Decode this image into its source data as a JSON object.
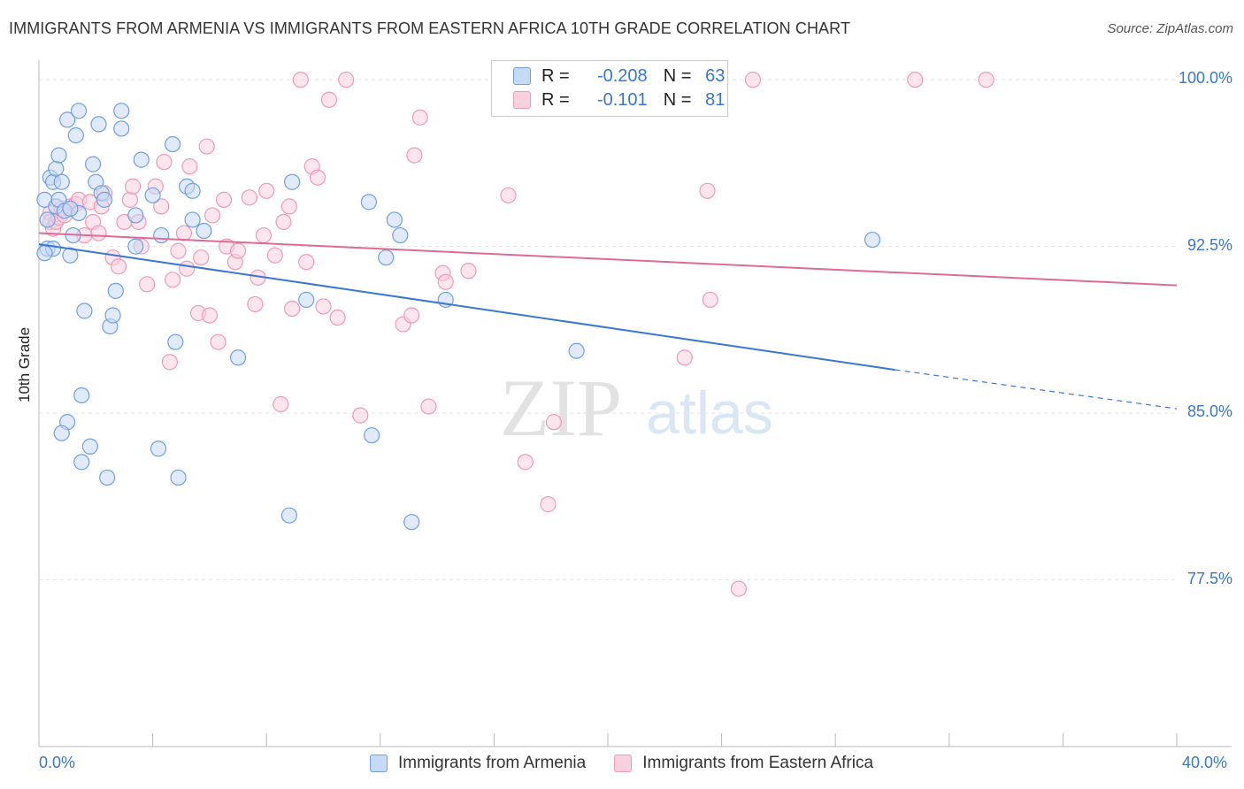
{
  "title": "IMMIGRANTS FROM ARMENIA VS IMMIGRANTS FROM EASTERN AFRICA 10TH GRADE CORRELATION CHART",
  "source": "Source: ZipAtlas.com",
  "watermark": {
    "zip": "ZIP",
    "atlas": "atlas"
  },
  "colors": {
    "blue": "#3a77d4",
    "blue_fill": "#c6d9f5",
    "blue_stroke": "#6fa0e0",
    "pink": "#e06a93",
    "pink_fill": "#f9d0dd",
    "pink_stroke": "#ef9ab8",
    "tick_text": "#3a77c9",
    "grid": "#e4e4e4"
  },
  "legend": {
    "r_label": "R =",
    "n_label": "N =",
    "rows": [
      {
        "r": "-0.208",
        "n": "63"
      },
      {
        "r": "-0.101",
        "n": "81"
      }
    ]
  },
  "chart_data": {
    "type": "scatter",
    "title": "IMMIGRANTS FROM ARMENIA VS IMMIGRANTS FROM EASTERN AFRICA 10TH GRADE CORRELATION CHART",
    "xlabel": "",
    "ylabel": "10th Grade",
    "xlim": [
      0,
      40
    ],
    "ylim": [
      70.0,
      101.2
    ],
    "x_tick_labels": [
      "0.0%",
      "40.0%"
    ],
    "y_ticks": [
      77.5,
      85.0,
      92.5,
      100.0
    ],
    "y_tick_labels": [
      "77.5%",
      "85.0%",
      "92.5%",
      "100.0%"
    ],
    "grid": true,
    "series": [
      {
        "name": "Immigrants from Armenia",
        "color": "blue",
        "r": -0.208,
        "n": 63,
        "trend": {
          "x": [
            0,
            30.1
          ],
          "y": [
            92.6,
            86.95
          ],
          "dashed_to": [
            40,
            85.2
          ]
        },
        "points": [
          [
            0.2,
            94.6
          ],
          [
            0.3,
            93.7
          ],
          [
            0.3,
            92.4
          ],
          [
            0.4,
            95.6
          ],
          [
            0.5,
            95.4
          ],
          [
            0.5,
            92.4
          ],
          [
            0.6,
            96.0
          ],
          [
            0.6,
            94.3
          ],
          [
            0.7,
            96.6
          ],
          [
            0.7,
            94.6
          ],
          [
            0.8,
            95.4
          ],
          [
            0.9,
            94.1
          ],
          [
            1.0,
            98.2
          ],
          [
            1.1,
            92.1
          ],
          [
            1.2,
            93.0
          ],
          [
            1.3,
            97.5
          ],
          [
            1.4,
            98.6
          ],
          [
            1.4,
            94.0
          ],
          [
            1.6,
            89.6
          ],
          [
            1.5,
            85.8
          ],
          [
            1.0,
            84.6
          ],
          [
            0.8,
            84.1
          ],
          [
            1.5,
            82.8
          ],
          [
            1.8,
            83.5
          ],
          [
            1.9,
            96.2
          ],
          [
            2.0,
            95.4
          ],
          [
            2.1,
            98.0
          ],
          [
            2.2,
            94.9
          ],
          [
            2.3,
            94.6
          ],
          [
            2.4,
            82.1
          ],
          [
            2.5,
            88.9
          ],
          [
            2.6,
            89.4
          ],
          [
            2.7,
            90.5
          ],
          [
            2.9,
            98.6
          ],
          [
            2.9,
            97.8
          ],
          [
            3.4,
            93.9
          ],
          [
            3.4,
            92.5
          ],
          [
            3.6,
            96.4
          ],
          [
            4.0,
            94.8
          ],
          [
            4.2,
            83.4
          ],
          [
            4.3,
            93.0
          ],
          [
            4.7,
            97.1
          ],
          [
            4.8,
            88.2
          ],
          [
            4.9,
            82.1
          ],
          [
            5.2,
            95.2
          ],
          [
            5.4,
            95.0
          ],
          [
            5.4,
            93.7
          ],
          [
            5.8,
            93.2
          ],
          [
            7.0,
            87.5
          ],
          [
            8.8,
            80.4
          ],
          [
            8.9,
            95.4
          ],
          [
            9.4,
            90.1
          ],
          [
            11.6,
            94.5
          ],
          [
            11.7,
            84.0
          ],
          [
            12.2,
            92.0
          ],
          [
            12.5,
            93.7
          ],
          [
            12.7,
            93.0
          ],
          [
            13.1,
            80.1
          ],
          [
            14.3,
            90.1
          ],
          [
            18.9,
            87.8
          ],
          [
            29.3,
            92.8
          ],
          [
            0.2,
            92.2
          ],
          [
            1.1,
            94.2
          ]
        ]
      },
      {
        "name": "Immigrants from Eastern Africa",
        "color": "pink",
        "r": -0.101,
        "n": 81,
        "trend": {
          "x": [
            0,
            40
          ],
          "y": [
            93.1,
            90.75
          ]
        },
        "points": [
          [
            0.4,
            94.0
          ],
          [
            0.4,
            93.6
          ],
          [
            0.5,
            93.3
          ],
          [
            0.6,
            93.6
          ],
          [
            0.7,
            93.8
          ],
          [
            0.8,
            94.2
          ],
          [
            0.9,
            93.9
          ],
          [
            1.1,
            94.3
          ],
          [
            1.3,
            94.4
          ],
          [
            1.4,
            94.6
          ],
          [
            1.6,
            93.0
          ],
          [
            1.8,
            94.5
          ],
          [
            1.9,
            93.6
          ],
          [
            2.1,
            93.1
          ],
          [
            2.2,
            94.3
          ],
          [
            2.3,
            94.9
          ],
          [
            2.6,
            92.0
          ],
          [
            2.8,
            91.6
          ],
          [
            3.0,
            93.6
          ],
          [
            3.2,
            94.6
          ],
          [
            3.3,
            95.2
          ],
          [
            3.5,
            93.6
          ],
          [
            3.6,
            92.5
          ],
          [
            3.8,
            90.8
          ],
          [
            4.1,
            95.2
          ],
          [
            4.3,
            94.3
          ],
          [
            4.4,
            96.3
          ],
          [
            4.6,
            87.3
          ],
          [
            4.7,
            91.0
          ],
          [
            4.9,
            92.3
          ],
          [
            5.1,
            93.1
          ],
          [
            5.2,
            91.5
          ],
          [
            5.3,
            96.1
          ],
          [
            5.6,
            89.5
          ],
          [
            5.7,
            92.0
          ],
          [
            5.9,
            97.0
          ],
          [
            6.0,
            89.4
          ],
          [
            6.1,
            93.9
          ],
          [
            6.3,
            88.2
          ],
          [
            6.5,
            94.6
          ],
          [
            6.6,
            92.5
          ],
          [
            6.9,
            91.8
          ],
          [
            7.0,
            92.3
          ],
          [
            7.4,
            94.7
          ],
          [
            7.6,
            89.9
          ],
          [
            7.7,
            91.1
          ],
          [
            7.9,
            93.0
          ],
          [
            8.0,
            95.0
          ],
          [
            8.3,
            92.1
          ],
          [
            8.5,
            85.4
          ],
          [
            8.6,
            93.6
          ],
          [
            8.8,
            94.3
          ],
          [
            8.9,
            89.7
          ],
          [
            9.2,
            100.0
          ],
          [
            9.4,
            91.8
          ],
          [
            9.6,
            96.1
          ],
          [
            9.8,
            95.6
          ],
          [
            10.0,
            89.8
          ],
          [
            10.2,
            99.1
          ],
          [
            10.5,
            89.3
          ],
          [
            10.8,
            100.0
          ],
          [
            11.3,
            84.9
          ],
          [
            12.8,
            89.0
          ],
          [
            13.1,
            89.4
          ],
          [
            13.2,
            96.6
          ],
          [
            13.4,
            98.3
          ],
          [
            13.7,
            85.3
          ],
          [
            14.2,
            91.3
          ],
          [
            14.3,
            90.9
          ],
          [
            15.1,
            91.4
          ],
          [
            16.5,
            94.8
          ],
          [
            17.1,
            82.8
          ],
          [
            17.9,
            80.9
          ],
          [
            18.1,
            84.6
          ],
          [
            22.7,
            87.5
          ],
          [
            23.5,
            95.0
          ],
          [
            23.6,
            90.1
          ],
          [
            24.6,
            77.1
          ],
          [
            25.1,
            100.0
          ],
          [
            30.8,
            100.0
          ],
          [
            33.3,
            100.0
          ]
        ]
      }
    ]
  }
}
